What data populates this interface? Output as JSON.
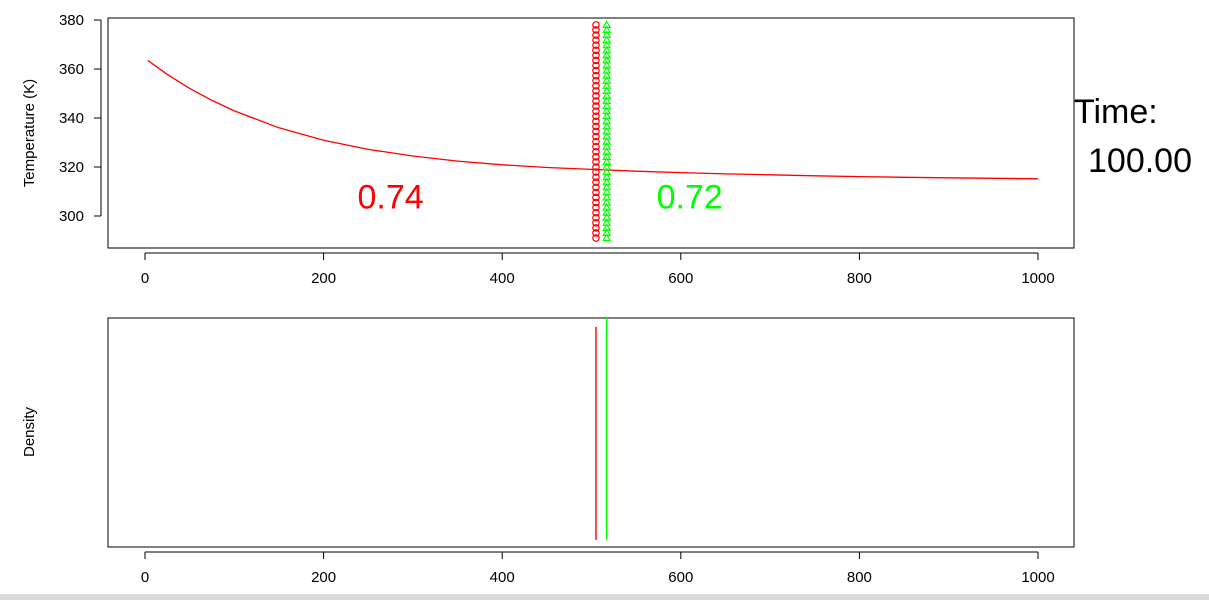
{
  "chart_data": [
    {
      "type": "scatter",
      "title": "",
      "xlabel": "",
      "ylabel": "Temperature (K)",
      "xlim": [
        0,
        1000
      ],
      "ylim": [
        287,
        380
      ],
      "xticks": [
        0,
        200,
        400,
        600,
        800,
        1000
      ],
      "yticks": [
        300,
        320,
        340,
        360,
        380
      ],
      "series": [
        {
          "type": "line",
          "color": "#ff0000",
          "x": [
            3,
            25,
            50,
            75,
            100,
            150,
            200,
            250,
            300,
            350,
            400,
            450,
            500,
            550,
            600,
            650,
            700,
            750,
            800,
            850,
            900,
            950,
            1000
          ],
          "y": [
            363.5,
            357.8,
            352.1,
            347.2,
            342.9,
            336.0,
            330.9,
            327.2,
            324.5,
            322.4,
            320.9,
            319.8,
            319.0,
            318.3,
            317.7,
            317.2,
            316.8,
            316.4,
            316.1,
            315.8,
            315.6,
            315.4,
            315.2
          ]
        },
        {
          "type": "points",
          "color": "#ff0000",
          "x": 505,
          "y_range": [
            291,
            378
          ]
        },
        {
          "type": "points",
          "color": "#00ff00",
          "x": 517,
          "y_range": [
            291,
            378
          ]
        }
      ],
      "annotations": [
        {
          "text": "0.74",
          "color": "#ff0000",
          "x": 275,
          "y": 308
        },
        {
          "text": "0.72",
          "color": "#00ff00",
          "x": 610,
          "y": 308
        }
      ]
    },
    {
      "type": "line",
      "title": "",
      "xlabel": "",
      "ylabel": "Density",
      "xlim": [
        0,
        1000
      ],
      "xticks": [
        0,
        200,
        400,
        600,
        800,
        1000
      ],
      "series": [
        {
          "color": "#ff0000",
          "x": 505,
          "top_fraction": 0.96
        },
        {
          "color": "#00ff00",
          "x": 517,
          "top_fraction": 1.0
        }
      ]
    }
  ],
  "time_label": "Time:",
  "time_value": "100.00"
}
